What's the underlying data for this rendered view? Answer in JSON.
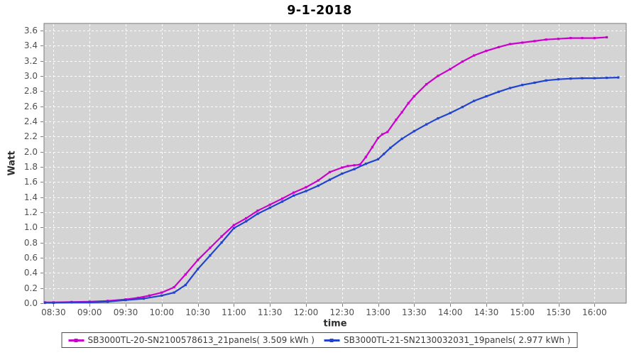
{
  "colors": {
    "plot_bg": "#d4d4d4",
    "grid": "#ffffff",
    "plot_border": "#7a7a7a",
    "tick": "#808080",
    "tick_label": "#4f4f4f",
    "axis_label": "#2e2e2e",
    "title": "#000000",
    "legend_border": "#4a4a4a",
    "legend_text": "#3a3a3a",
    "series_magenta": "#cc00cc",
    "series_blue": "#2143cd"
  },
  "chart_data": {
    "type": "line",
    "title": "9-1-2018",
    "xlabel": "time",
    "ylabel": "Watt",
    "xlim": [
      8.368,
      16.44
    ],
    "ylim": [
      0,
      3.693
    ],
    "grid": true,
    "grid_style": "white dashed on light-gray plot background",
    "legend_position": "bottom",
    "x_ticks": [
      8.5,
      9,
      9.5,
      10,
      10.5,
      11,
      11.5,
      12,
      12.5,
      13,
      13.5,
      14,
      14.5,
      15,
      15.5,
      16
    ],
    "x_tick_labels": [
      "08:30",
      "09:00",
      "09:30",
      "10:00",
      "10:30",
      "11:00",
      "11:30",
      "12:00",
      "12:30",
      "13:00",
      "13:30",
      "14:00",
      "14:30",
      "15:00",
      "15:30",
      "16:00"
    ],
    "y_ticks": [
      0,
      0.2,
      0.4,
      0.6,
      0.8,
      1.0,
      1.2,
      1.4,
      1.6,
      1.8,
      2.0,
      2.2,
      2.4,
      2.6,
      2.8,
      3.0,
      3.2,
      3.4,
      3.6
    ],
    "y_tick_labels": [
      "0.0",
      "0.2",
      "0.4",
      "0.6",
      "0.8",
      "1.0",
      "1.2",
      "1.4",
      "1.6",
      "1.8",
      "2.0",
      "2.2",
      "2.4",
      "2.6",
      "2.8",
      "3.0",
      "3.2",
      "3.4",
      "3.6"
    ],
    "series": [
      {
        "name": "SB3000TL-20-SN2100578613_21panels( 3.509 kWh )",
        "color": "#cc00cc",
        "total_kwh_label": "3.509 kWh",
        "points": [
          [
            8.38,
            0.01
          ],
          [
            8.5,
            0.01
          ],
          [
            8.75,
            0.015
          ],
          [
            9.0,
            0.02
          ],
          [
            9.25,
            0.03
          ],
          [
            9.5,
            0.05
          ],
          [
            9.67,
            0.07
          ],
          [
            9.83,
            0.1
          ],
          [
            10.0,
            0.14
          ],
          [
            10.17,
            0.21
          ],
          [
            10.33,
            0.38
          ],
          [
            10.5,
            0.57
          ],
          [
            10.67,
            0.73
          ],
          [
            10.83,
            0.88
          ],
          [
            11.0,
            1.03
          ],
          [
            11.17,
            1.12
          ],
          [
            11.33,
            1.22
          ],
          [
            11.5,
            1.3
          ],
          [
            11.67,
            1.38
          ],
          [
            11.83,
            1.46
          ],
          [
            12.0,
            1.53
          ],
          [
            12.17,
            1.62
          ],
          [
            12.33,
            1.73
          ],
          [
            12.5,
            1.79
          ],
          [
            12.58,
            1.81
          ],
          [
            12.67,
            1.82
          ],
          [
            12.75,
            1.83
          ],
          [
            12.83,
            1.93
          ],
          [
            12.92,
            2.06
          ],
          [
            13.0,
            2.18
          ],
          [
            13.06,
            2.23
          ],
          [
            13.13,
            2.26
          ],
          [
            13.25,
            2.42
          ],
          [
            13.33,
            2.52
          ],
          [
            13.42,
            2.64
          ],
          [
            13.5,
            2.73
          ],
          [
            13.67,
            2.89
          ],
          [
            13.83,
            3.0
          ],
          [
            14.0,
            3.09
          ],
          [
            14.17,
            3.19
          ],
          [
            14.33,
            3.27
          ],
          [
            14.5,
            3.33
          ],
          [
            14.67,
            3.38
          ],
          [
            14.83,
            3.42
          ],
          [
            15.0,
            3.44
          ],
          [
            15.17,
            3.46
          ],
          [
            15.33,
            3.48
          ],
          [
            15.5,
            3.49
          ],
          [
            15.67,
            3.5
          ],
          [
            15.83,
            3.5
          ],
          [
            16.0,
            3.5
          ],
          [
            16.17,
            3.51
          ]
        ]
      },
      {
        "name": "SB3000TL-21-SN2130032031_19panels( 2.977 kWh )",
        "color": "#2143cd",
        "total_kwh_label": "2.977 kWh",
        "points": [
          [
            8.38,
            0.005
          ],
          [
            8.5,
            0.005
          ],
          [
            8.75,
            0.01
          ],
          [
            9.0,
            0.01
          ],
          [
            9.25,
            0.02
          ],
          [
            9.5,
            0.04
          ],
          [
            9.75,
            0.06
          ],
          [
            10.0,
            0.1
          ],
          [
            10.17,
            0.14
          ],
          [
            10.33,
            0.24
          ],
          [
            10.5,
            0.45
          ],
          [
            10.67,
            0.63
          ],
          [
            10.83,
            0.8
          ],
          [
            11.0,
            0.99
          ],
          [
            11.17,
            1.08
          ],
          [
            11.33,
            1.18
          ],
          [
            11.5,
            1.26
          ],
          [
            11.67,
            1.34
          ],
          [
            11.83,
            1.42
          ],
          [
            12.0,
            1.48
          ],
          [
            12.17,
            1.55
          ],
          [
            12.33,
            1.63
          ],
          [
            12.5,
            1.71
          ],
          [
            12.67,
            1.77
          ],
          [
            12.83,
            1.84
          ],
          [
            13.0,
            1.9
          ],
          [
            13.08,
            1.97
          ],
          [
            13.17,
            2.05
          ],
          [
            13.33,
            2.17
          ],
          [
            13.5,
            2.27
          ],
          [
            13.67,
            2.36
          ],
          [
            13.83,
            2.44
          ],
          [
            14.0,
            2.51
          ],
          [
            14.17,
            2.59
          ],
          [
            14.33,
            2.67
          ],
          [
            14.5,
            2.73
          ],
          [
            14.67,
            2.79
          ],
          [
            14.83,
            2.84
          ],
          [
            15.0,
            2.88
          ],
          [
            15.17,
            2.91
          ],
          [
            15.33,
            2.94
          ],
          [
            15.5,
            2.955
          ],
          [
            15.67,
            2.965
          ],
          [
            15.83,
            2.97
          ],
          [
            16.0,
            2.97
          ],
          [
            16.17,
            2.975
          ],
          [
            16.33,
            2.98
          ]
        ]
      }
    ]
  }
}
